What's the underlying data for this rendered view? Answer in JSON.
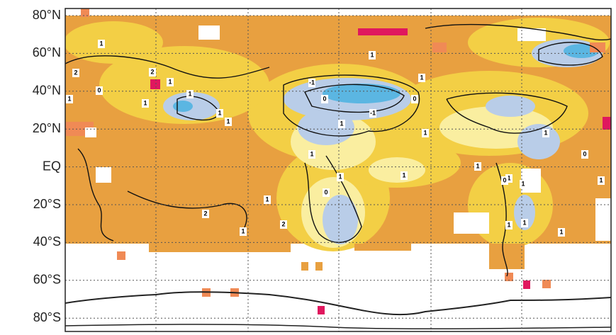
{
  "axis": {
    "lat_labels": [
      "80°N",
      "60°N",
      "40°N",
      "20°N",
      "EQ",
      "20°S",
      "40°S",
      "60°S",
      "80°S"
    ]
  },
  "contour_labels": [
    "1",
    "2",
    "0",
    "1",
    "1",
    "2",
    "1",
    "1",
    "1",
    "1",
    "-1",
    "0",
    "-1",
    "1",
    "1",
    "0",
    "1",
    "1",
    "1",
    "2",
    "2",
    "1",
    "1",
    "0",
    "1",
    "1",
    "1",
    "1",
    "1",
    "0",
    "1",
    "1",
    "1",
    "1",
    "0",
    "1"
  ]
}
